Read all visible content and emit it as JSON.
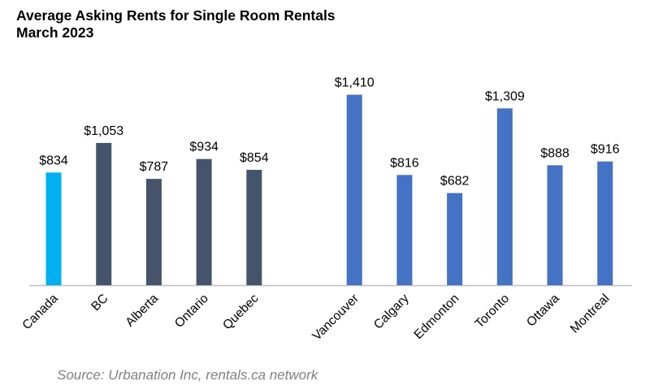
{
  "chart_data": {
    "type": "bar",
    "title": [
      "Average Asking Rents for Single Room Rentals",
      "March 2023"
    ],
    "xlabel": "",
    "ylabel": "",
    "ylim": [
      0,
      1600
    ],
    "grid": false,
    "legend": "none",
    "categories": [
      "Canada",
      "BC",
      "Alberta",
      "Ontario",
      "Quebec",
      "Vancouver",
      "Calgary",
      "Edmonton",
      "Toronto",
      "Ottawa",
      "Montreal"
    ],
    "values": [
      834,
      1053,
      787,
      934,
      854,
      1410,
      816,
      682,
      1309,
      888,
      916
    ],
    "data_labels": [
      "$834",
      "$1,053",
      "$787",
      "$934",
      "$854",
      "$1,410",
      "$816",
      "$682",
      "$1,309",
      "$888",
      "$916"
    ],
    "groups": [
      "national",
      "province",
      "province",
      "province",
      "province",
      "city",
      "city",
      "city",
      "city",
      "city",
      "city"
    ],
    "colors": {
      "national": "#00B0F0",
      "province": "#44546A",
      "city": "#4472C4",
      "axis": "#BFBFBF"
    }
  },
  "source": "Source: Urbanation Inc, rentals.ca network"
}
